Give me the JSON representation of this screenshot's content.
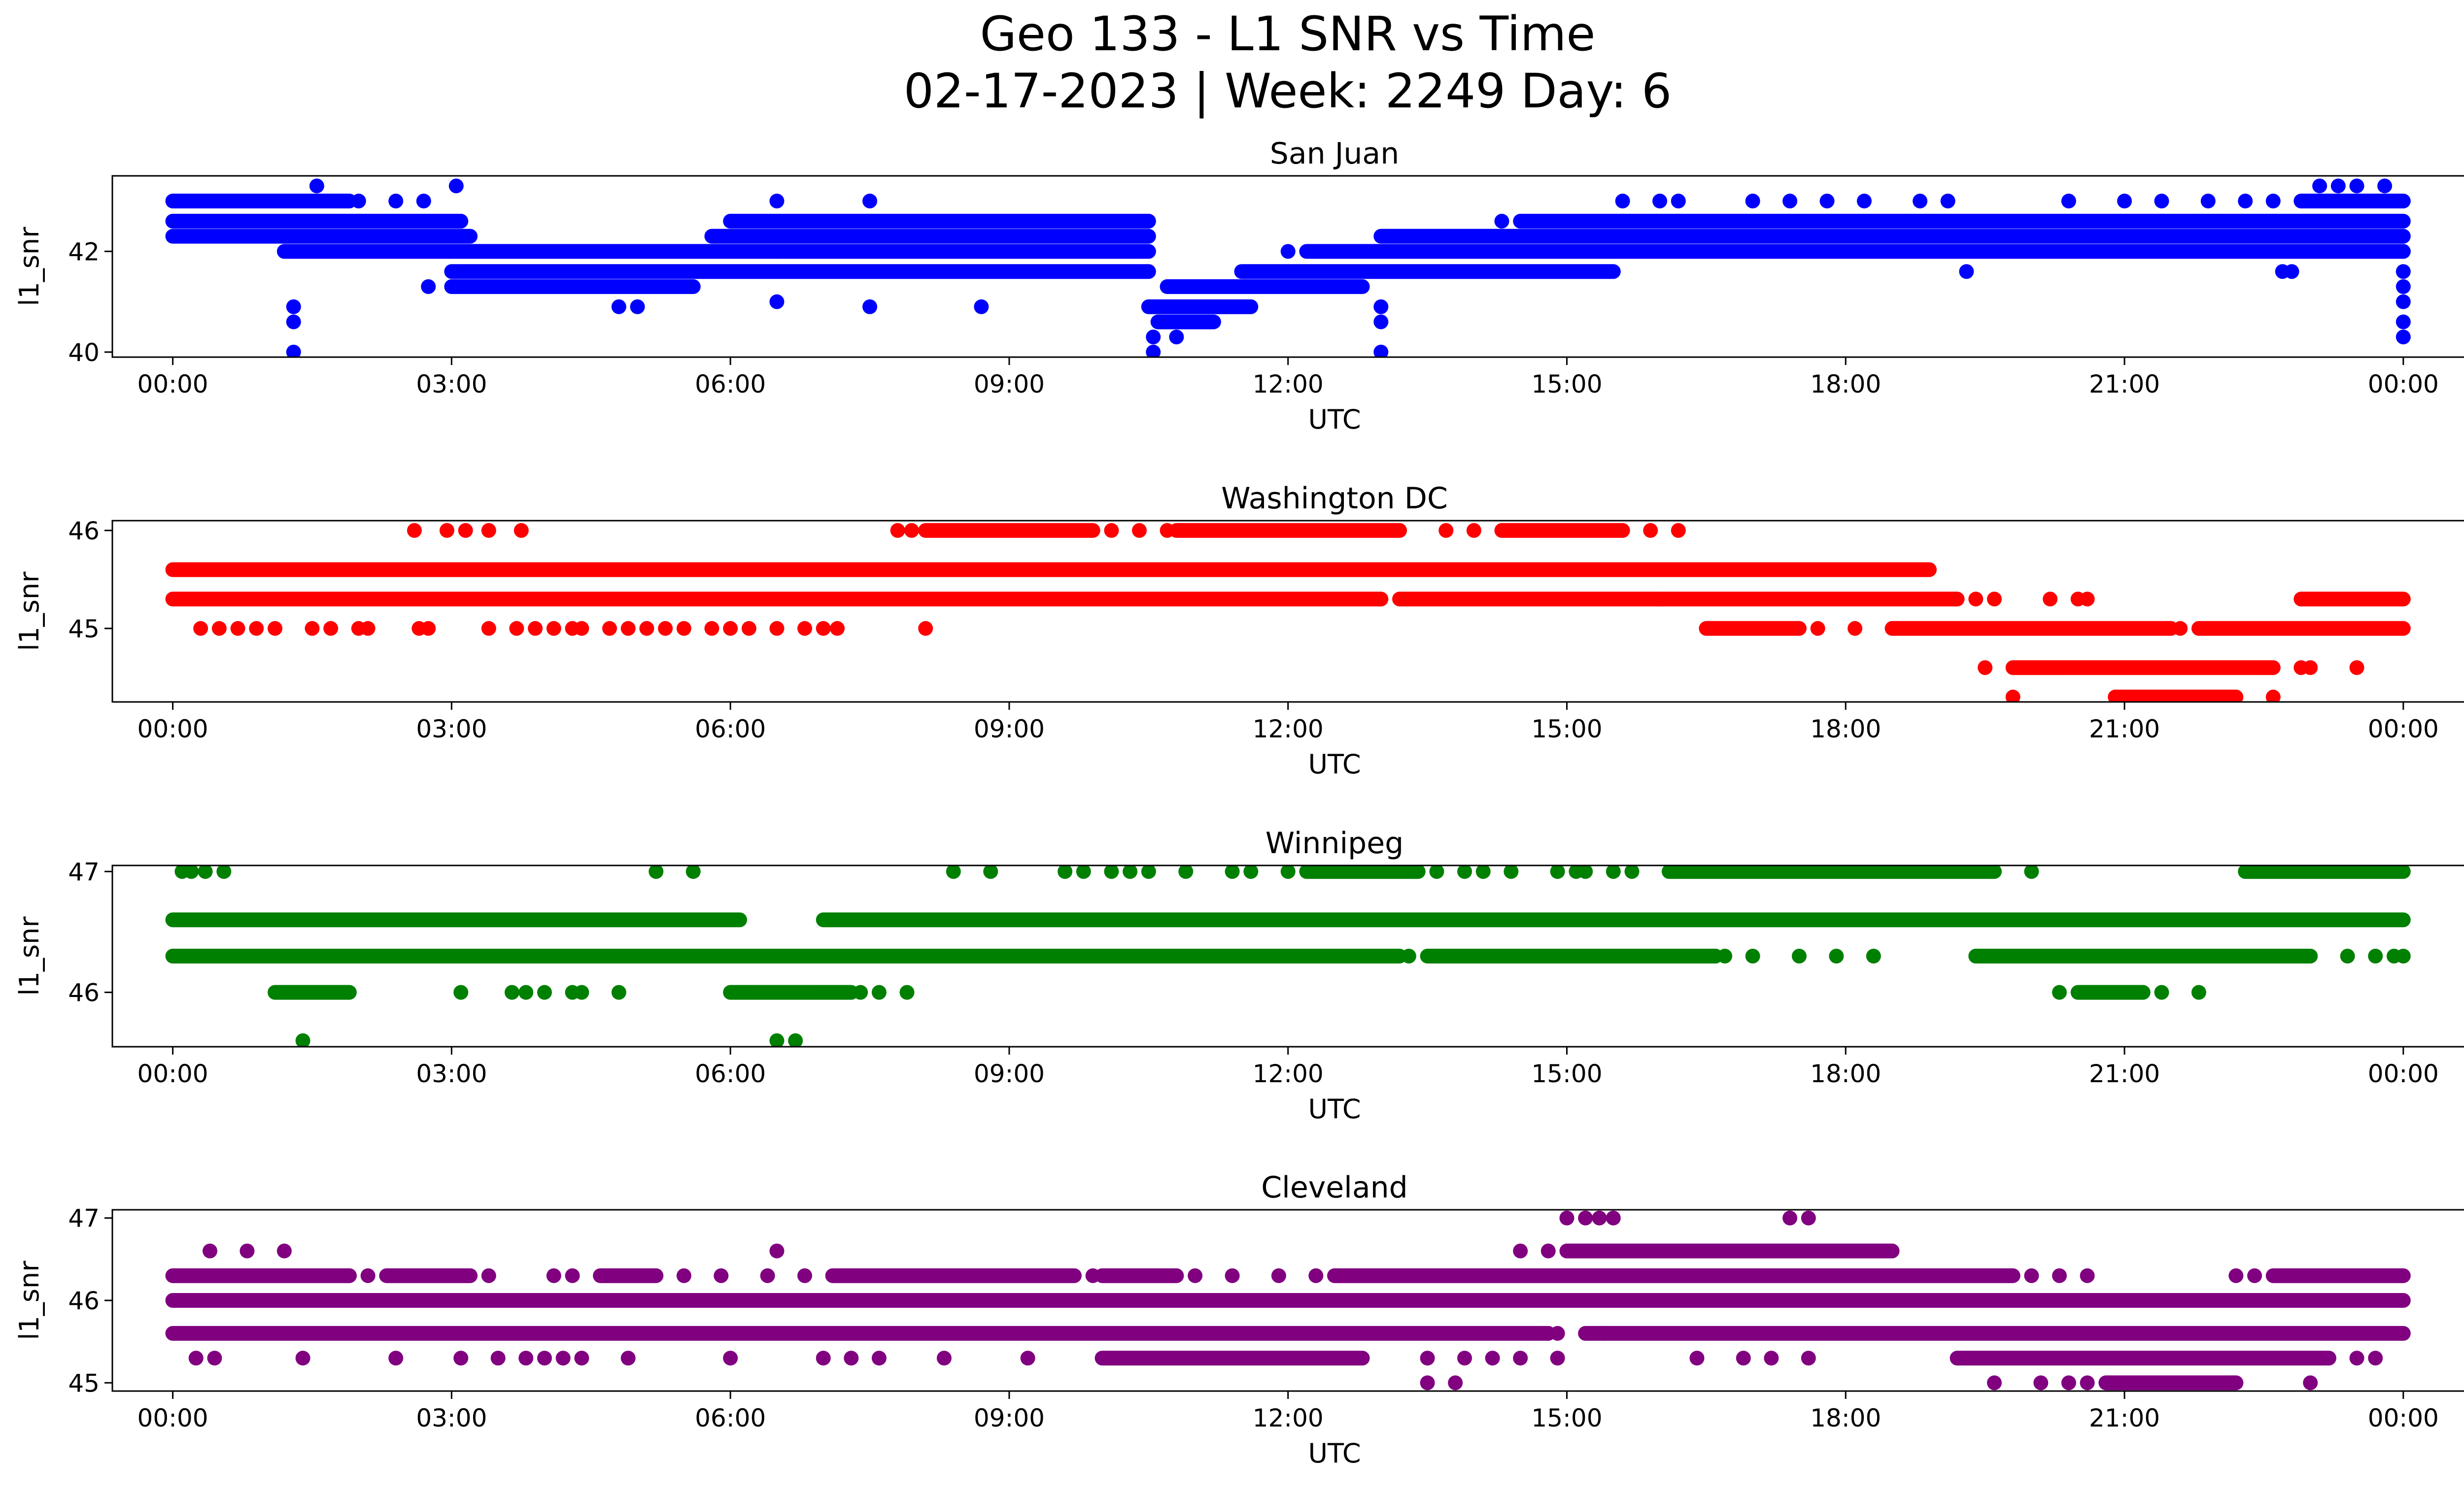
{
  "figure": {
    "title_line1": "Geo 133 - L1 SNR vs Time",
    "title_line2": "02-17-2023 | Week: 2249 Day: 6"
  },
  "chart_data": [
    {
      "type": "scatter",
      "title": "San Juan",
      "xlabel": "UTC",
      "ylabel": "l1_snr",
      "color": "#0000ff",
      "xticks": [
        "00:00",
        "03:00",
        "06:00",
        "09:00",
        "12:00",
        "15:00",
        "18:00",
        "21:00",
        "00:00"
      ],
      "xlim": [
        -0.65,
        25.65
      ],
      "ylim": [
        39.9,
        43.5
      ],
      "yticks": [
        40,
        42
      ],
      "bands": [
        {
          "y": 43.0,
          "segments": [
            [
              0,
              1.9
            ],
            [
              22.9,
              24.0
            ]
          ]
        },
        {
          "y": 42.6,
          "segments": [
            [
              0,
              3.1
            ],
            [
              6.0,
              10.5
            ],
            [
              14.5,
              24.0
            ]
          ]
        },
        {
          "y": 42.3,
          "segments": [
            [
              0,
              3.2
            ],
            [
              5.8,
              10.5
            ],
            [
              13.0,
              24.0
            ]
          ]
        },
        {
          "y": 42.0,
          "segments": [
            [
              1.2,
              6.5
            ],
            [
              6.5,
              10.5
            ],
            [
              12.2,
              24.0
            ]
          ]
        },
        {
          "y": 41.6,
          "segments": [
            [
              3.0,
              10.5
            ],
            [
              11.5,
              15.5
            ]
          ]
        },
        {
          "y": 41.3,
          "segments": [
            [
              3.0,
              5.6
            ],
            [
              10.7,
              12.8
            ]
          ]
        },
        {
          "y": 40.9,
          "segments": [
            [
              10.5,
              11.6
            ]
          ]
        },
        {
          "y": 40.6,
          "segments": [
            [
              10.6,
              11.2
            ]
          ]
        }
      ],
      "points": [
        [
          1.55,
          43.3
        ],
        [
          3.05,
          43.3
        ],
        [
          6.5,
          43.0
        ],
        [
          7.5,
          43.0
        ],
        [
          1.3,
          40.0
        ],
        [
          1.3,
          40.6
        ],
        [
          1.3,
          40.9
        ],
        [
          10.55,
          40.0
        ],
        [
          10.55,
          40.3
        ],
        [
          10.8,
          40.3
        ],
        [
          13.0,
          40.0
        ],
        [
          13.0,
          40.6
        ],
        [
          13.0,
          40.9
        ],
        [
          2.75,
          41.3
        ],
        [
          4.8,
          40.9
        ],
        [
          5.0,
          40.9
        ],
        [
          6.5,
          41.0
        ],
        [
          7.5,
          40.9
        ],
        [
          8.7,
          40.9
        ],
        [
          12.0,
          42.0
        ],
        [
          14.3,
          42.6
        ],
        [
          19.3,
          41.6
        ],
        [
          22.7,
          41.6
        ],
        [
          22.8,
          41.6
        ],
        [
          23.1,
          43.3
        ],
        [
          23.3,
          43.3
        ],
        [
          23.5,
          43.3
        ],
        [
          23.8,
          43.3
        ],
        [
          24.0,
          40.3
        ],
        [
          24.0,
          40.6
        ],
        [
          24.0,
          41.0
        ],
        [
          24.0,
          41.3
        ],
        [
          24.0,
          41.6
        ],
        [
          24.0,
          42.0
        ],
        [
          2.0,
          43.0
        ],
        [
          2.4,
          43.0
        ],
        [
          2.7,
          43.0
        ],
        [
          15.6,
          43.0
        ],
        [
          16.0,
          43.0
        ],
        [
          16.2,
          43.0
        ],
        [
          17.0,
          43.0
        ],
        [
          17.4,
          43.0
        ],
        [
          17.8,
          43.0
        ],
        [
          18.2,
          43.0
        ],
        [
          18.8,
          43.0
        ],
        [
          19.1,
          43.0
        ],
        [
          20.4,
          43.0
        ],
        [
          21.0,
          43.0
        ],
        [
          21.4,
          43.0
        ],
        [
          21.9,
          43.0
        ],
        [
          22.3,
          43.0
        ],
        [
          22.6,
          43.0
        ]
      ]
    },
    {
      "type": "scatter",
      "title": "Washington DC",
      "xlabel": "UTC",
      "ylabel": "l1_snr",
      "color": "#ff0000",
      "xticks": [
        "00:00",
        "03:00",
        "06:00",
        "09:00",
        "12:00",
        "15:00",
        "18:00",
        "21:00",
        "00:00"
      ],
      "xlim": [
        -0.65,
        25.65
      ],
      "ylim": [
        44.25,
        46.1
      ],
      "yticks": [
        45,
        46
      ],
      "bands": [
        {
          "y": 45.6,
          "segments": [
            [
              0,
              18.9
            ]
          ]
        },
        {
          "y": 45.3,
          "segments": [
            [
              0,
              13.0
            ],
            [
              13.2,
              16.0
            ],
            [
              16.0,
              19.2
            ],
            [
              22.9,
              24.0
            ]
          ]
        },
        {
          "y": 45.0,
          "segments": [
            [
              16.5,
              17.5
            ],
            [
              18.5,
              21.5
            ],
            [
              21.8,
              24.0
            ]
          ]
        },
        {
          "y": 44.6,
          "segments": [
            [
              19.8,
              22.6
            ]
          ]
        },
        {
          "y": 44.3,
          "segments": [
            [
              20.9,
              22.2
            ]
          ]
        },
        {
          "y": 46.0,
          "segments": [
            [
              8.1,
              9.9
            ],
            [
              10.8,
              13.2
            ],
            [
              14.3,
              15.6
            ]
          ]
        }
      ],
      "points": [
        [
          2.6,
          46.0
        ],
        [
          2.95,
          46.0
        ],
        [
          3.15,
          46.0
        ],
        [
          3.4,
          46.0
        ],
        [
          3.75,
          46.0
        ],
        [
          7.8,
          46.0
        ],
        [
          7.95,
          46.0
        ],
        [
          10.1,
          46.0
        ],
        [
          10.4,
          46.0
        ],
        [
          10.7,
          46.0
        ],
        [
          13.7,
          46.0
        ],
        [
          14.0,
          46.0
        ],
        [
          15.9,
          46.0
        ],
        [
          16.2,
          46.0
        ],
        [
          0.3,
          45.0
        ],
        [
          0.5,
          45.0
        ],
        [
          0.7,
          45.0
        ],
        [
          0.9,
          45.0
        ],
        [
          1.1,
          45.0
        ],
        [
          1.5,
          45.0
        ],
        [
          1.7,
          45.0
        ],
        [
          2.0,
          45.0
        ],
        [
          2.1,
          45.0
        ],
        [
          2.65,
          45.0
        ],
        [
          2.75,
          45.0
        ],
        [
          3.4,
          45.0
        ],
        [
          3.7,
          45.0
        ],
        [
          3.9,
          45.0
        ],
        [
          4.1,
          45.0
        ],
        [
          4.3,
          45.0
        ],
        [
          4.4,
          45.0
        ],
        [
          4.7,
          45.0
        ],
        [
          4.9,
          45.0
        ],
        [
          5.1,
          45.0
        ],
        [
          5.3,
          45.0
        ],
        [
          5.5,
          45.0
        ],
        [
          5.8,
          45.0
        ],
        [
          6.0,
          45.0
        ],
        [
          6.2,
          45.0
        ],
        [
          6.5,
          45.0
        ],
        [
          6.8,
          45.0
        ],
        [
          7.0,
          45.0
        ],
        [
          7.15,
          45.0
        ],
        [
          8.1,
          45.0
        ],
        [
          19.4,
          45.3
        ],
        [
          19.6,
          45.3
        ],
        [
          20.2,
          45.3
        ],
        [
          20.5,
          45.3
        ],
        [
          20.6,
          45.3
        ],
        [
          19.5,
          44.6
        ],
        [
          23.5,
          44.6
        ],
        [
          19.8,
          44.3
        ],
        [
          22.6,
          44.3
        ],
        [
          21.6,
          45.0
        ],
        [
          17.7,
          45.0
        ],
        [
          18.1,
          45.0
        ],
        [
          22.9,
          44.6
        ],
        [
          23.0,
          44.6
        ]
      ]
    },
    {
      "type": "scatter",
      "title": "Winnipeg",
      "xlabel": "UTC",
      "ylabel": "l1_snr",
      "color": "#008000",
      "xticks": [
        "00:00",
        "03:00",
        "06:00",
        "09:00",
        "12:00",
        "15:00",
        "18:00",
        "21:00",
        "00:00"
      ],
      "xlim": [
        -0.65,
        25.65
      ],
      "ylim": [
        45.55,
        47.05
      ],
      "yticks": [
        46,
        47
      ],
      "bands": [
        {
          "y": 46.6,
          "segments": [
            [
              0,
              6.1
            ],
            [
              7.0,
              24.0
            ]
          ]
        },
        {
          "y": 46.3,
          "segments": [
            [
              0,
              13.2
            ],
            [
              13.5,
              16.0
            ],
            [
              16.0,
              16.6
            ],
            [
              19.4,
              23.0
            ]
          ]
        },
        {
          "y": 46.0,
          "segments": [
            [
              1.1,
              1.9
            ],
            [
              6.0,
              7.3
            ],
            [
              20.5,
              21.2
            ]
          ]
        },
        {
          "y": 47.0,
          "segments": [
            [
              12.2,
              13.4
            ],
            [
              16.1,
              19.6
            ],
            [
              22.3,
              24.0
            ]
          ]
        }
      ],
      "points": [
        [
          0.1,
          47.0
        ],
        [
          0.2,
          47.0
        ],
        [
          0.35,
          47.0
        ],
        [
          0.55,
          47.0
        ],
        [
          5.2,
          47.0
        ],
        [
          5.6,
          47.0
        ],
        [
          8.4,
          47.0
        ],
        [
          8.8,
          47.0
        ],
        [
          9.6,
          47.0
        ],
        [
          9.8,
          47.0
        ],
        [
          10.1,
          47.0
        ],
        [
          10.3,
          47.0
        ],
        [
          10.5,
          47.0
        ],
        [
          10.9,
          47.0
        ],
        [
          11.4,
          47.0
        ],
        [
          11.6,
          47.0
        ],
        [
          12.0,
          47.0
        ],
        [
          13.6,
          47.0
        ],
        [
          13.9,
          47.0
        ],
        [
          14.1,
          47.0
        ],
        [
          14.4,
          47.0
        ],
        [
          14.9,
          47.0
        ],
        [
          15.1,
          47.0
        ],
        [
          15.2,
          47.0
        ],
        [
          15.5,
          47.0
        ],
        [
          15.7,
          47.0
        ],
        [
          20.0,
          47.0
        ],
        [
          1.4,
          45.6
        ],
        [
          6.5,
          45.6
        ],
        [
          6.7,
          45.6
        ],
        [
          3.1,
          46.0
        ],
        [
          3.65,
          46.0
        ],
        [
          3.8,
          46.0
        ],
        [
          4.0,
          46.0
        ],
        [
          4.3,
          46.0
        ],
        [
          4.4,
          46.0
        ],
        [
          4.8,
          46.0
        ],
        [
          7.4,
          46.0
        ],
        [
          7.6,
          46.0
        ],
        [
          7.9,
          46.0
        ],
        [
          20.3,
          46.0
        ],
        [
          21.4,
          46.0
        ],
        [
          21.8,
          46.0
        ],
        [
          13.3,
          46.3
        ],
        [
          13.8,
          46.3
        ],
        [
          16.7,
          46.3
        ],
        [
          17.0,
          46.3
        ],
        [
          17.5,
          46.3
        ],
        [
          17.9,
          46.3
        ],
        [
          18.3,
          46.3
        ],
        [
          23.4,
          46.3
        ],
        [
          23.7,
          46.3
        ],
        [
          24.0,
          46.3
        ],
        [
          23.9,
          46.3
        ]
      ]
    },
    {
      "type": "scatter",
      "title": "Cleveland",
      "xlabel": "UTC",
      "ylabel": "l1_snr",
      "color": "#800080",
      "xticks": [
        "00:00",
        "03:00",
        "06:00",
        "09:00",
        "12:00",
        "15:00",
        "18:00",
        "21:00",
        "00:00"
      ],
      "xlim": [
        -0.65,
        25.65
      ],
      "ylim": [
        44.9,
        47.1
      ],
      "yticks": [
        45,
        46,
        47
      ],
      "bands": [
        {
          "y": 46.3,
          "segments": [
            [
              0,
              1.9
            ],
            [
              2.3,
              3.2
            ],
            [
              4.6,
              5.2
            ],
            [
              7.1,
              9.7
            ],
            [
              10.0,
              10.8
            ],
            [
              12.5,
              19.8
            ],
            [
              22.6,
              24.0
            ]
          ]
        },
        {
          "y": 46.0,
          "segments": [
            [
              0,
              24.0
            ]
          ]
        },
        {
          "y": 45.6,
          "segments": [
            [
              0,
              14.8
            ],
            [
              15.2,
              24.0
            ]
          ]
        },
        {
          "y": 45.3,
          "segments": [
            [
              10.0,
              12.8
            ],
            [
              19.2,
              23.2
            ]
          ]
        },
        {
          "y": 46.6,
          "segments": [
            [
              15.0,
              18.5
            ]
          ]
        },
        {
          "y": 45.0,
          "segments": [
            [
              20.8,
              22.2
            ]
          ]
        }
      ],
      "points": [
        [
          0.4,
          46.6
        ],
        [
          0.8,
          46.6
        ],
        [
          1.2,
          46.6
        ],
        [
          6.5,
          46.6
        ],
        [
          14.5,
          46.6
        ],
        [
          14.8,
          46.6
        ],
        [
          15.0,
          47.0
        ],
        [
          15.2,
          47.0
        ],
        [
          15.35,
          47.0
        ],
        [
          15.5,
          47.0
        ],
        [
          17.4,
          47.0
        ],
        [
          17.6,
          47.0
        ],
        [
          0.25,
          45.3
        ],
        [
          0.45,
          45.3
        ],
        [
          1.4,
          45.3
        ],
        [
          2.4,
          45.3
        ],
        [
          3.1,
          45.3
        ],
        [
          3.5,
          45.3
        ],
        [
          3.8,
          45.3
        ],
        [
          4.0,
          45.3
        ],
        [
          4.2,
          45.3
        ],
        [
          4.4,
          45.3
        ],
        [
          4.9,
          45.3
        ],
        [
          6.0,
          45.3
        ],
        [
          7.0,
          45.3
        ],
        [
          7.3,
          45.3
        ],
        [
          7.6,
          45.3
        ],
        [
          8.3,
          45.3
        ],
        [
          9.2,
          45.3
        ],
        [
          13.5,
          45.3
        ],
        [
          13.9,
          45.3
        ],
        [
          14.2,
          45.3
        ],
        [
          14.5,
          45.3
        ],
        [
          14.9,
          45.3
        ],
        [
          16.4,
          45.3
        ],
        [
          16.9,
          45.3
        ],
        [
          17.2,
          45.3
        ],
        [
          17.6,
          45.3
        ],
        [
          23.5,
          45.3
        ],
        [
          23.7,
          45.3
        ],
        [
          13.5,
          45.0
        ],
        [
          13.8,
          45.0
        ],
        [
          19.6,
          45.0
        ],
        [
          20.1,
          45.0
        ],
        [
          20.4,
          45.0
        ],
        [
          20.6,
          45.0
        ],
        [
          23.0,
          45.0
        ],
        [
          1.9,
          46.3
        ],
        [
          2.1,
          46.3
        ],
        [
          3.4,
          46.3
        ],
        [
          5.5,
          46.3
        ],
        [
          5.9,
          46.3
        ],
        [
          6.4,
          46.3
        ],
        [
          6.8,
          46.3
        ],
        [
          9.9,
          46.3
        ],
        [
          11.0,
          46.3
        ],
        [
          11.4,
          46.3
        ],
        [
          11.9,
          46.3
        ],
        [
          12.3,
          46.3
        ],
        [
          20.0,
          46.3
        ],
        [
          20.3,
          46.3
        ],
        [
          20.6,
          46.3
        ],
        [
          22.2,
          46.3
        ],
        [
          22.4,
          46.3
        ],
        [
          14.8,
          45.6
        ],
        [
          14.9,
          45.6
        ],
        [
          15.4,
          45.6
        ],
        [
          4.1,
          46.3
        ],
        [
          4.3,
          46.3
        ]
      ]
    }
  ]
}
